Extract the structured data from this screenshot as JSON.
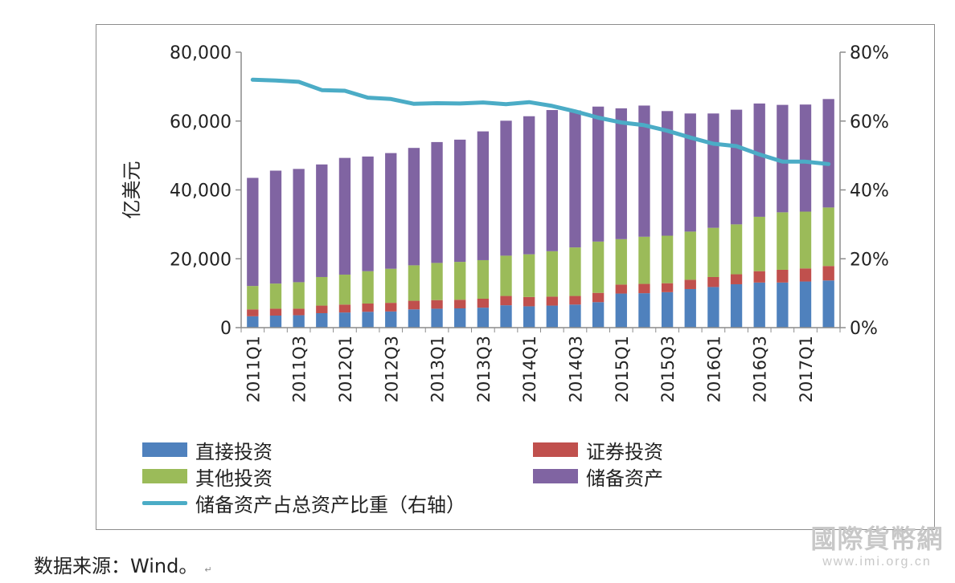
{
  "chart_data": {
    "type": "bar",
    "stacked": true,
    "ylabel": "亿美元",
    "ylim": [
      0,
      80000
    ],
    "y_ticks": [
      "0",
      "20,000",
      "40,000",
      "60,000",
      "80,000"
    ],
    "y2lim": [
      0,
      0.8
    ],
    "y2_ticks": [
      "0%",
      "20%",
      "40%",
      "60%",
      "80%"
    ],
    "categories": [
      "2011Q1",
      "2011Q2",
      "2011Q3",
      "2011Q4",
      "2012Q1",
      "2012Q2",
      "2012Q3",
      "2012Q4",
      "2013Q1",
      "2013Q2",
      "2013Q3",
      "2013Q4",
      "2014Q1",
      "2014Q2",
      "2014Q3",
      "2014Q4",
      "2015Q1",
      "2015Q2",
      "2015Q3",
      "2015Q4",
      "2016Q1",
      "2016Q2",
      "2016Q3",
      "2016Q4",
      "2017Q1",
      "2017Q2"
    ],
    "x_tick_labels": [
      "2011Q1",
      "",
      "2011Q3",
      "",
      "2012Q1",
      "",
      "2012Q3",
      "",
      "2013Q1",
      "",
      "2013Q3",
      "",
      "2014Q1",
      "",
      "2014Q3",
      "",
      "2015Q1",
      "",
      "2015Q3",
      "",
      "2016Q1",
      "",
      "2016Q3",
      "",
      "2017Q1",
      ""
    ],
    "series": [
      {
        "name": "直接投资",
        "color": "#4f81bd",
        "axis": "left",
        "values": [
          3300,
          3500,
          3600,
          4200,
          4400,
          4600,
          4700,
          5300,
          5500,
          5600,
          5800,
          6500,
          6200,
          6400,
          6700,
          7400,
          9900,
          10000,
          10300,
          11200,
          11800,
          12600,
          13100,
          13100,
          13400,
          13700
        ]
      },
      {
        "name": "证券投资",
        "color": "#c0504d",
        "axis": "left",
        "values": [
          2000,
          2000,
          1900,
          2200,
          2300,
          2400,
          2500,
          2500,
          2500,
          2500,
          2600,
          2700,
          2700,
          2600,
          2500,
          2700,
          2600,
          2700,
          2600,
          2700,
          2900,
          2900,
          3300,
          3700,
          3800,
          4200
        ]
      },
      {
        "name": "其他投资",
        "color": "#9bbb59",
        "axis": "left",
        "values": [
          6800,
          7300,
          7700,
          8300,
          8700,
          9400,
          9900,
          10300,
          10800,
          11000,
          11200,
          11700,
          12400,
          13200,
          14100,
          14900,
          13200,
          13700,
          13800,
          14000,
          14300,
          14500,
          15800,
          16700,
          16500,
          17000
        ]
      },
      {
        "name": "储备资产",
        "color": "#8064a2",
        "axis": "left",
        "values": [
          31400,
          32800,
          32900,
          32700,
          33900,
          33300,
          33600,
          34100,
          35100,
          35500,
          37400,
          39200,
          40100,
          41000,
          39800,
          39200,
          38000,
          38100,
          36200,
          34300,
          33200,
          33300,
          32900,
          31200,
          31100,
          31500
        ]
      },
      {
        "name": "储备资产占总资产比重（右轴）",
        "color": "#4bacc6",
        "axis": "right",
        "type": "line",
        "values": [
          0.72,
          0.718,
          0.714,
          0.69,
          0.688,
          0.668,
          0.664,
          0.65,
          0.652,
          0.651,
          0.654,
          0.649,
          0.655,
          0.644,
          0.628,
          0.61,
          0.596,
          0.588,
          0.572,
          0.552,
          0.534,
          0.527,
          0.503,
          0.482,
          0.482,
          0.475
        ]
      }
    ]
  },
  "legend": {
    "direct": "直接投资",
    "securities": "证券投资",
    "other": "其他投资",
    "reserve": "储备资产",
    "ratio": "储备资产占总资产比重（右轴）"
  },
  "source_note": "数据来源：Wind。",
  "source_mark": "↵",
  "watermark": {
    "cn": "國際貨幣網",
    "url": "www.imi.org.cn"
  },
  "colors": {
    "direct": "#4f81bd",
    "securities": "#c0504d",
    "other": "#9bbb59",
    "reserve": "#8064a2",
    "ratio": "#4bacc6"
  }
}
